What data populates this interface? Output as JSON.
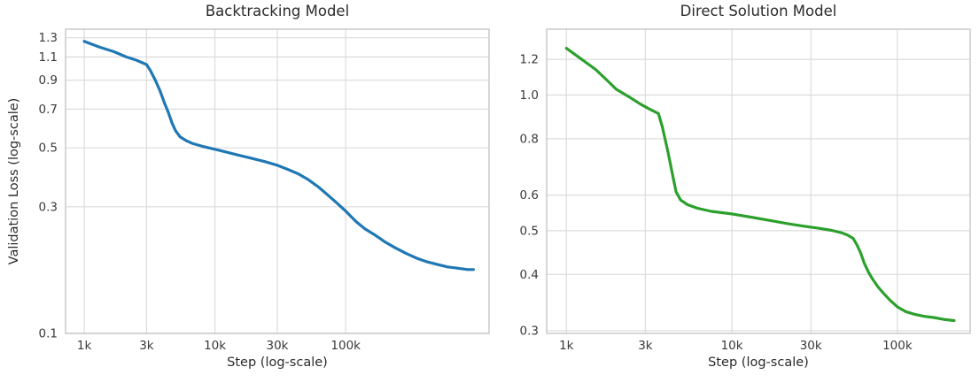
{
  "figure": {
    "background": "#ffffff",
    "grid_color": "#dcdcdc",
    "spine_color": "#c6c6c6",
    "title_color": "#2b2b2b",
    "tick_color": "#3a3a3a"
  },
  "chart_data": [
    {
      "type": "line",
      "title": "Backtracking Model",
      "xlabel": "Step (log-scale)",
      "ylabel": "Validation Loss (log-scale)",
      "x_scale": "log",
      "y_scale": "log",
      "grid": true,
      "legend": "none",
      "xlim": [
        720,
        1250000
      ],
      "ylim": [
        0.1,
        1.4
      ],
      "x_ticks": [
        {
          "value": 1000,
          "label": "1k"
        },
        {
          "value": 3000,
          "label": "3k"
        },
        {
          "value": 10000,
          "label": "10k"
        },
        {
          "value": 30000,
          "label": "30k"
        },
        {
          "value": 100000,
          "label": "100k"
        }
      ],
      "y_ticks": [
        {
          "value": 1.3,
          "label": "1.3"
        },
        {
          "value": 1.1,
          "label": "1.1"
        },
        {
          "value": 0.9,
          "label": "0.9"
        },
        {
          "value": 0.7,
          "label": "0.7"
        },
        {
          "value": 0.5,
          "label": "0.5"
        },
        {
          "value": 0.3,
          "label": "0.3"
        },
        {
          "value": 0.1,
          "label": "0.1"
        }
      ],
      "series": [
        {
          "name": "backtracking-validation-loss",
          "color": "#1f77b4",
          "points": [
            [
              1000,
              1.26
            ],
            [
              1300,
              1.2
            ],
            [
              1700,
              1.15
            ],
            [
              2100,
              1.1
            ],
            [
              2500,
              1.07
            ],
            [
              3000,
              1.03
            ],
            [
              3200,
              0.98
            ],
            [
              3500,
              0.9
            ],
            [
              3800,
              0.82
            ],
            [
              4100,
              0.74
            ],
            [
              4400,
              0.68
            ],
            [
              4700,
              0.62
            ],
            [
              5000,
              0.58
            ],
            [
              5400,
              0.551
            ],
            [
              6000,
              0.533
            ],
            [
              6700,
              0.52
            ],
            [
              8000,
              0.507
            ],
            [
              10000,
              0.494
            ],
            [
              12000,
              0.483
            ],
            [
              15000,
              0.47
            ],
            [
              19000,
              0.457
            ],
            [
              24000,
              0.444
            ],
            [
              30000,
              0.43
            ],
            [
              36000,
              0.415
            ],
            [
              43000,
              0.4
            ],
            [
              52000,
              0.379
            ],
            [
              62000,
              0.356
            ],
            [
              73000,
              0.332
            ],
            [
              85000,
              0.311
            ],
            [
              100000,
              0.289
            ],
            [
              120000,
              0.264
            ],
            [
              140000,
              0.248
            ],
            [
              165000,
              0.236
            ],
            [
              200000,
              0.221
            ],
            [
              240000,
              0.21
            ],
            [
              290000,
              0.2
            ],
            [
              350000,
              0.192
            ],
            [
              420000,
              0.186
            ],
            [
              500000,
              0.182
            ],
            [
              600000,
              0.178
            ],
            [
              720000,
              0.176
            ],
            [
              860000,
              0.174
            ],
            [
              950000,
              0.174
            ]
          ]
        }
      ]
    },
    {
      "type": "line",
      "title": "Direct Solution Model",
      "xlabel": "Step (log-scale)",
      "ylabel": "",
      "x_scale": "log",
      "y_scale": "log",
      "grid": true,
      "legend": "none",
      "xlim": [
        760,
        275000
      ],
      "ylim": [
        0.296,
        1.4
      ],
      "x_ticks": [
        {
          "value": 1000,
          "label": "1k"
        },
        {
          "value": 3000,
          "label": "3k"
        },
        {
          "value": 10000,
          "label": "10k"
        },
        {
          "value": 30000,
          "label": "30k"
        },
        {
          "value": 100000,
          "label": "100k"
        }
      ],
      "y_ticks": [
        {
          "value": 1.2,
          "label": "1.2"
        },
        {
          "value": 1.0,
          "label": "1.0"
        },
        {
          "value": 0.8,
          "label": "0.8"
        },
        {
          "value": 0.6,
          "label": "0.6"
        },
        {
          "value": 0.5,
          "label": "0.5"
        },
        {
          "value": 0.4,
          "label": "0.4"
        },
        {
          "value": 0.3,
          "label": "0.3"
        }
      ],
      "series": [
        {
          "name": "direct-solution-validation-loss",
          "color": "#2ca02c",
          "points": [
            [
              1000,
              1.27
            ],
            [
              1200,
              1.21
            ],
            [
              1500,
              1.14
            ],
            [
              1800,
              1.07
            ],
            [
              2000,
              1.03
            ],
            [
              2400,
              0.99
            ],
            [
              2800,
              0.955
            ],
            [
              3200,
              0.93
            ],
            [
              3600,
              0.91
            ],
            [
              3800,
              0.85
            ],
            [
              4100,
              0.75
            ],
            [
              4400,
              0.66
            ],
            [
              4600,
              0.61
            ],
            [
              4900,
              0.585
            ],
            [
              5400,
              0.571
            ],
            [
              6200,
              0.561
            ],
            [
              7500,
              0.552
            ],
            [
              10000,
              0.545
            ],
            [
              13000,
              0.536
            ],
            [
              17000,
              0.527
            ],
            [
              22000,
              0.518
            ],
            [
              27000,
              0.512
            ],
            [
              33000,
              0.507
            ],
            [
              40000,
              0.501
            ],
            [
              46000,
              0.495
            ],
            [
              50000,
              0.489
            ],
            [
              54000,
              0.481
            ],
            [
              57000,
              0.465
            ],
            [
              60000,
              0.446
            ],
            [
              63000,
              0.424
            ],
            [
              67000,
              0.404
            ],
            [
              71000,
              0.39
            ],
            [
              76000,
              0.376
            ],
            [
              82000,
              0.364
            ],
            [
              90000,
              0.351
            ],
            [
              100000,
              0.339
            ],
            [
              112000,
              0.331
            ],
            [
              128000,
              0.326
            ],
            [
              145000,
              0.323
            ],
            [
              165000,
              0.321
            ],
            [
              190000,
              0.318
            ],
            [
              220000,
              0.316
            ]
          ]
        }
      ]
    }
  ]
}
